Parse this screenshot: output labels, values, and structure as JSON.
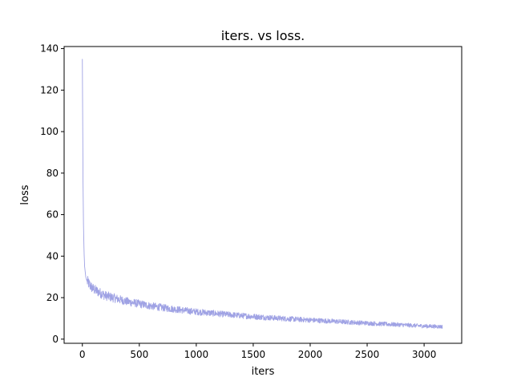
{
  "chart_data": {
    "type": "line",
    "title": "iters. vs loss.",
    "xlabel": "iters",
    "ylabel": "loss",
    "xlim": [
      -160,
      3330
    ],
    "ylim": [
      -2,
      141
    ],
    "xticks": [
      0,
      500,
      1000,
      1500,
      2000,
      2500,
      3000
    ],
    "yticks": [
      0,
      20,
      40,
      60,
      80,
      100,
      120,
      140
    ],
    "grid": false,
    "legend": "none",
    "line_color": "#9fa2e4",
    "series": [
      {
        "x": [
          0,
          3,
          6,
          10,
          15,
          20,
          30,
          40,
          60,
          80,
          100,
          150,
          200,
          300,
          400,
          500,
          600,
          700,
          800,
          900,
          1000,
          1200,
          1400,
          1600,
          1800,
          2000,
          2200,
          2400,
          2600,
          2800,
          3000,
          3160
        ],
        "y": [
          135,
          105,
          75,
          55,
          42,
          35,
          30,
          28,
          26.5,
          25,
          24,
          22.5,
          21,
          19.5,
          18,
          17,
          16,
          15.2,
          14.5,
          13.8,
          13.2,
          12.2,
          11.3,
          10.5,
          9.8,
          9.2,
          8.6,
          8.0,
          7.4,
          6.9,
          6.3,
          6.0
        ]
      }
    ]
  }
}
